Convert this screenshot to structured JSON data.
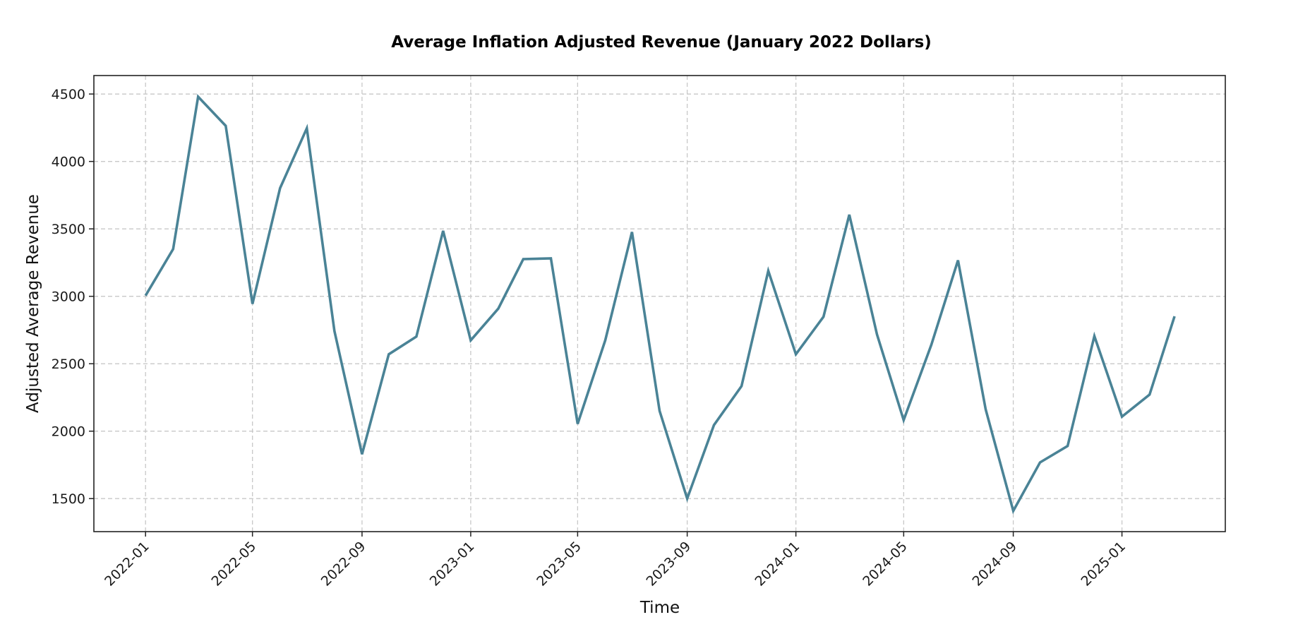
{
  "chart_data": {
    "type": "line",
    "title": "Average Inflation Adjusted Revenue (January 2022 Dollars)",
    "xlabel": "Time",
    "ylabel": "Adjusted Average Revenue",
    "x_ticks": [
      "2022-01",
      "2022-05",
      "2022-09",
      "2023-01",
      "2023-05",
      "2023-09",
      "2024-01",
      "2024-05",
      "2024-09",
      "2025-01"
    ],
    "y_ticks": [
      1500,
      2000,
      2500,
      3000,
      3500,
      4000,
      4500
    ],
    "y_tick_labels": [
      "1500",
      "2000",
      "2500",
      "3000",
      "3500",
      "4000",
      "4500"
    ],
    "xlim": [
      "2021-11-04",
      "2025-04-27"
    ],
    "ylim": [
      1255,
      4637
    ],
    "grid": true,
    "grid_style": "dashed",
    "legend": null,
    "series": [
      {
        "name": "Adjusted Average Revenue",
        "color": "#4A8396",
        "x": [
          "2022-01",
          "2022-02",
          "2022-03",
          "2022-04",
          "2022-05",
          "2022-06",
          "2022-07",
          "2022-08",
          "2022-09",
          "2022-10",
          "2022-11",
          "2022-12",
          "2023-01",
          "2023-02",
          "2023-03",
          "2023-04",
          "2023-05",
          "2023-06",
          "2023-07",
          "2023-08",
          "2023-09",
          "2023-10",
          "2023-11",
          "2023-12",
          "2024-01",
          "2024-02",
          "2024-03",
          "2024-04",
          "2024-05",
          "2024-06",
          "2024-07",
          "2024-08",
          "2024-09",
          "2024-10",
          "2024-11",
          "2024-12",
          "2025-01",
          "2025-02",
          "2025-03"
        ],
        "values": [
          3005,
          3350,
          4480,
          4264,
          2944,
          3802,
          4246,
          2743,
          1829,
          2570,
          2701,
          3486,
          2673,
          2909,
          3276,
          3281,
          2054,
          2673,
          3477,
          2150,
          1500,
          2045,
          2334,
          3189,
          2570,
          2848,
          3605,
          2717,
          2082,
          2640,
          3267,
          2161,
          1409,
          1768,
          1890,
          2705,
          2108,
          2271,
          2852
        ]
      }
    ]
  }
}
